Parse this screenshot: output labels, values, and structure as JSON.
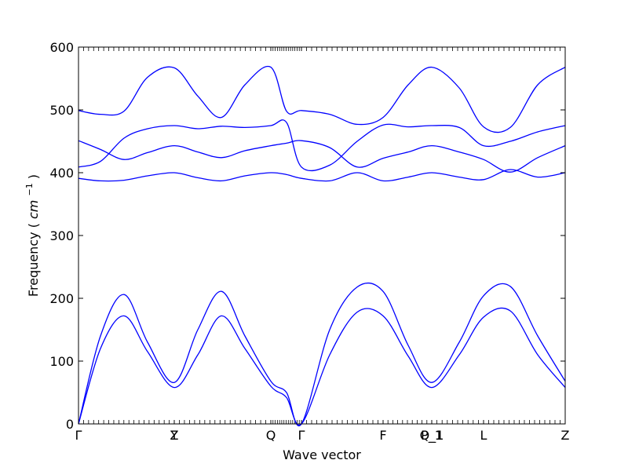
{
  "chart_data": {
    "type": "line",
    "xlabel": "Wave vector",
    "ylabel": "Frequency",
    "ylabel_unit_symbol": "cm",
    "ylabel_unit_exponent": "−1",
    "ylim": [
      0,
      600
    ],
    "yticks": [
      0,
      100,
      200,
      300,
      400,
      500,
      600
    ],
    "xlim": [
      0,
      620
    ],
    "grid": false,
    "legend": "none",
    "line_color": "#0000ff",
    "kpoints": [
      {
        "label": "Γ",
        "x": 0
      },
      {
        "label": "Y",
        "x": 122
      },
      {
        "label": "Z",
        "x": 122
      },
      {
        "label": "Q",
        "x": 245
      },
      {
        "label": "Γ",
        "x": 284
      },
      {
        "label": "F",
        "x": 388
      },
      {
        "label": "P_1",
        "x": 450
      },
      {
        "label": "Q_1",
        "x": 450
      },
      {
        "label": "L",
        "x": 516
      },
      {
        "label": "Z",
        "x": 620
      }
    ],
    "series": [
      {
        "x": [
          0,
          28,
          58,
          88,
          122,
          152,
          182,
          212,
          245,
          265,
          284,
          320,
          355,
          388,
          420,
          450,
          485,
          516,
          550,
          585,
          620
        ],
        "y": [
          0,
          120,
          172,
          115,
          58,
          110,
          172,
          120,
          60,
          42,
          0,
          110,
          178,
          172,
          108,
          58,
          110,
          170,
          180,
          110,
          58
        ]
      },
      {
        "x": [
          0,
          28,
          58,
          88,
          122,
          152,
          182,
          212,
          245,
          265,
          284,
          320,
          355,
          388,
          420,
          450,
          485,
          516,
          550,
          585,
          620
        ],
        "y": [
          0,
          140,
          206,
          130,
          66,
          150,
          211,
          140,
          68,
          50,
          0,
          150,
          218,
          211,
          125,
          66,
          130,
          204,
          219,
          140,
          68
        ]
      },
      {
        "x": [
          0,
          28,
          58,
          88,
          122,
          152,
          182,
          212,
          245,
          265,
          284,
          320,
          355,
          388,
          420,
          450,
          485,
          516,
          550,
          585,
          620
        ],
        "y": [
          391,
          387,
          388,
          395,
          400,
          392,
          387,
          395,
          400,
          397,
          391,
          387,
          400,
          387,
          393,
          400,
          393,
          389,
          405,
          393,
          400
        ]
      },
      {
        "x": [
          0,
          28,
          58,
          88,
          122,
          152,
          182,
          212,
          245,
          265,
          284,
          320,
          355,
          388,
          420,
          450,
          485,
          516,
          550,
          585,
          620
        ],
        "y": [
          451,
          437,
          421,
          432,
          443,
          433,
          424,
          435,
          443,
          447,
          451,
          440,
          409,
          423,
          433,
          443,
          433,
          421,
          401,
          424,
          443
        ]
      },
      {
        "x": [
          0,
          28,
          58,
          88,
          122,
          152,
          182,
          212,
          245,
          265,
          284,
          320,
          355,
          388,
          420,
          450,
          485,
          516,
          550,
          585,
          620
        ],
        "y": [
          409,
          418,
          455,
          470,
          475,
          470,
          474,
          472,
          475,
          480,
          409,
          412,
          450,
          476,
          473,
          475,
          472,
          443,
          450,
          465,
          475
        ]
      },
      {
        "x": [
          0,
          28,
          58,
          88,
          122,
          152,
          182,
          212,
          245,
          265,
          284,
          320,
          355,
          388,
          420,
          450,
          485,
          516,
          550,
          585,
          620
        ],
        "y": [
          499,
          493,
          498,
          552,
          567,
          522,
          488,
          540,
          568,
          498,
          499,
          493,
          477,
          488,
          540,
          568,
          535,
          473,
          472,
          540,
          568
        ]
      }
    ]
  }
}
